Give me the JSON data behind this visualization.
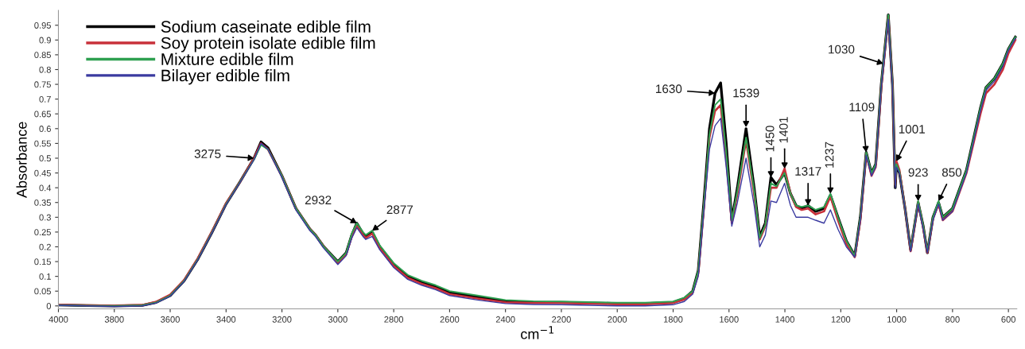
{
  "chart_data": {
    "type": "line",
    "xlabel": "cm$^{−1}$",
    "ylabel": "Absorbance",
    "x": [
      4000,
      3900,
      3800,
      3700,
      3650,
      3600,
      3550,
      3500,
      3450,
      3400,
      3350,
      3300,
      3275,
      3250,
      3200,
      3150,
      3100,
      3080,
      3050,
      3000,
      2970,
      2950,
      2932,
      2910,
      2900,
      2877,
      2850,
      2800,
      2750,
      2700,
      2650,
      2600,
      2500,
      2400,
      2300,
      2200,
      2100,
      2000,
      1900,
      1800,
      1760,
      1730,
      1710,
      1690,
      1670,
      1650,
      1630,
      1610,
      1590,
      1570,
      1539,
      1510,
      1490,
      1470,
      1450,
      1430,
      1401,
      1380,
      1360,
      1340,
      1317,
      1290,
      1260,
      1237,
      1210,
      1180,
      1150,
      1130,
      1109,
      1090,
      1075,
      1055,
      1030,
      1015,
      1005,
      1001,
      990,
      970,
      950,
      923,
      905,
      890,
      870,
      850,
      835,
      800,
      750,
      700,
      680,
      650,
      620,
      600,
      575
    ],
    "series": [
      {
        "name": "Sodium caseinate edible film",
        "color": "#000000",
        "values": [
          0.003,
          0.001,
          0,
          0.002,
          0.012,
          0.035,
          0.085,
          0.16,
          0.25,
          0.345,
          0.42,
          0.5,
          0.555,
          0.535,
          0.44,
          0.33,
          0.26,
          0.24,
          0.2,
          0.15,
          0.18,
          0.24,
          0.28,
          0.245,
          0.235,
          0.25,
          0.2,
          0.14,
          0.1,
          0.08,
          0.065,
          0.045,
          0.03,
          0.015,
          0.012,
          0.012,
          0.01,
          0.008,
          0.008,
          0.012,
          0.025,
          0.05,
          0.12,
          0.35,
          0.6,
          0.72,
          0.755,
          0.55,
          0.29,
          0.4,
          0.6,
          0.4,
          0.235,
          0.28,
          0.435,
          0.41,
          0.45,
          0.38,
          0.34,
          0.33,
          0.34,
          0.32,
          0.33,
          0.375,
          0.3,
          0.22,
          0.17,
          0.3,
          0.52,
          0.45,
          0.48,
          0.75,
          0.985,
          0.75,
          0.4,
          0.475,
          0.45,
          0.33,
          0.19,
          0.35,
          0.27,
          0.18,
          0.3,
          0.35,
          0.3,
          0.33,
          0.46,
          0.67,
          0.74,
          0.77,
          0.82,
          0.87,
          0.91
        ]
      },
      {
        "name": "Soy protein isolate edible film",
        "color": "#c8303a",
        "values": [
          0.004,
          0.002,
          0.001,
          0.003,
          0.014,
          0.038,
          0.088,
          0.163,
          0.253,
          0.348,
          0.42,
          0.5,
          0.55,
          0.53,
          0.44,
          0.33,
          0.26,
          0.24,
          0.2,
          0.145,
          0.175,
          0.235,
          0.27,
          0.24,
          0.23,
          0.245,
          0.195,
          0.135,
          0.095,
          0.075,
          0.06,
          0.04,
          0.025,
          0.012,
          0.01,
          0.01,
          0.008,
          0.006,
          0.006,
          0.01,
          0.022,
          0.045,
          0.11,
          0.33,
          0.57,
          0.66,
          0.68,
          0.5,
          0.28,
          0.38,
          0.56,
          0.38,
          0.225,
          0.27,
          0.4,
          0.4,
          0.465,
          0.38,
          0.335,
          0.325,
          0.33,
          0.31,
          0.32,
          0.37,
          0.29,
          0.21,
          0.165,
          0.29,
          0.515,
          0.44,
          0.47,
          0.74,
          0.98,
          0.75,
          0.41,
          0.49,
          0.46,
          0.33,
          0.185,
          0.35,
          0.265,
          0.18,
          0.295,
          0.345,
          0.29,
          0.32,
          0.45,
          0.65,
          0.72,
          0.75,
          0.8,
          0.855,
          0.9
        ]
      },
      {
        "name": "Mixture edible film",
        "color": "#2ea050",
        "values": [
          0.003,
          0.001,
          0,
          0.002,
          0.012,
          0.035,
          0.085,
          0.16,
          0.25,
          0.345,
          0.42,
          0.495,
          0.545,
          0.53,
          0.44,
          0.33,
          0.26,
          0.24,
          0.2,
          0.15,
          0.18,
          0.245,
          0.28,
          0.25,
          0.24,
          0.255,
          0.205,
          0.145,
          0.105,
          0.085,
          0.07,
          0.05,
          0.035,
          0.02,
          0.016,
          0.015,
          0.013,
          0.011,
          0.011,
          0.015,
          0.028,
          0.05,
          0.12,
          0.34,
          0.58,
          0.68,
          0.7,
          0.52,
          0.29,
          0.39,
          0.57,
          0.39,
          0.23,
          0.275,
          0.415,
          0.405,
          0.45,
          0.38,
          0.34,
          0.335,
          0.34,
          0.325,
          0.335,
          0.38,
          0.3,
          0.22,
          0.17,
          0.3,
          0.52,
          0.45,
          0.48,
          0.75,
          0.985,
          0.75,
          0.41,
          0.48,
          0.455,
          0.33,
          0.19,
          0.355,
          0.27,
          0.185,
          0.3,
          0.355,
          0.3,
          0.33,
          0.46,
          0.67,
          0.74,
          0.77,
          0.82,
          0.87,
          0.91
        ]
      },
      {
        "name": "Bilayer edible film",
        "color": "#3a3aa0",
        "values": [
          0.002,
          0,
          -0.002,
          0,
          0.01,
          0.033,
          0.083,
          0.158,
          0.248,
          0.343,
          0.418,
          0.495,
          0.55,
          0.53,
          0.435,
          0.325,
          0.255,
          0.235,
          0.195,
          0.14,
          0.17,
          0.23,
          0.265,
          0.235,
          0.225,
          0.235,
          0.19,
          0.13,
          0.09,
          0.07,
          0.055,
          0.035,
          0.02,
          0.008,
          0.005,
          0.004,
          0.002,
          0,
          0,
          0.004,
          0.015,
          0.04,
          0.1,
          0.32,
          0.53,
          0.61,
          0.635,
          0.47,
          0.27,
          0.35,
          0.5,
          0.34,
          0.2,
          0.24,
          0.355,
          0.35,
          0.415,
          0.34,
          0.3,
          0.3,
          0.3,
          0.29,
          0.28,
          0.325,
          0.26,
          0.2,
          0.165,
          0.29,
          0.51,
          0.44,
          0.47,
          0.74,
          0.97,
          0.74,
          0.4,
          0.47,
          0.45,
          0.33,
          0.185,
          0.345,
          0.26,
          0.18,
          0.29,
          0.345,
          0.29,
          0.32,
          0.45,
          0.66,
          0.73,
          0.76,
          0.81,
          0.865,
          0.905
        ]
      }
    ],
    "annotations": [
      {
        "text": "3275",
        "x": 3300,
        "y": 0.5
      },
      {
        "text": "2932",
        "x": 2932,
        "y": 0.28
      },
      {
        "text": "2877",
        "x": 2877,
        "y": 0.255
      },
      {
        "text": "1630",
        "x": 1650,
        "y": 0.72
      },
      {
        "text": "1539",
        "x": 1539,
        "y": 0.605
      },
      {
        "text": "1450",
        "x": 1450,
        "y": 0.435
      },
      {
        "text": "1401",
        "x": 1401,
        "y": 0.465
      },
      {
        "text": "1317",
        "x": 1317,
        "y": 0.34
      },
      {
        "text": "1237",
        "x": 1237,
        "y": 0.38
      },
      {
        "text": "1109",
        "x": 1109,
        "y": 0.52
      },
      {
        "text": "1030",
        "x": 1048,
        "y": 0.82
      },
      {
        "text": "1001",
        "x": 1001,
        "y": 0.49
      },
      {
        "text": "923",
        "x": 923,
        "y": 0.355
      },
      {
        "text": "850",
        "x": 850,
        "y": 0.355
      }
    ],
    "xlim": [
      4000,
      570
    ],
    "ylim": [
      -0.01,
      1.0
    ],
    "xticks": [
      4000,
      3800,
      3600,
      3400,
      3200,
      3000,
      2800,
      2600,
      2400,
      2200,
      2000,
      1800,
      1600,
      1400,
      1200,
      1000,
      800,
      600
    ],
    "yticks": [
      0,
      0.05,
      0.1,
      0.15,
      0.2,
      0.25,
      0.3,
      0.35,
      0.4,
      0.45,
      0.5,
      0.55,
      0.6,
      0.65,
      0.7,
      0.75,
      0.8,
      0.85,
      0.9,
      0.95
    ],
    "legend": "top left",
    "grid": false,
    "line_style": "solid",
    "marker": "none"
  }
}
